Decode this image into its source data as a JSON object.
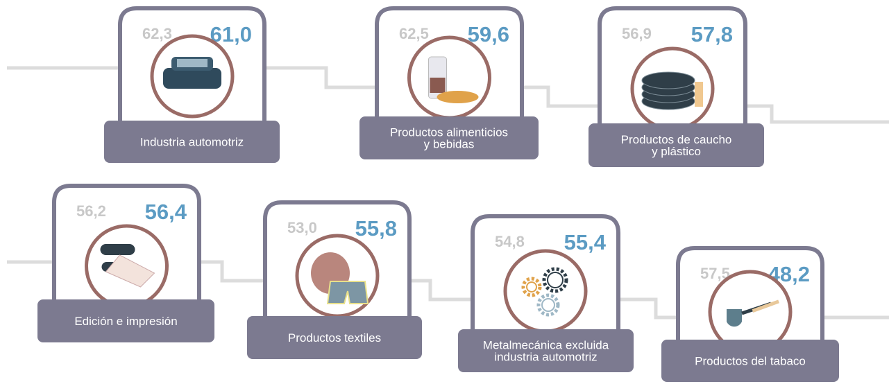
{
  "cards": [
    {
      "label": [
        "Industria automotriz"
      ],
      "previous": "62,3",
      "current": "61,0"
    },
    {
      "label": [
        "Productos alimenticios",
        "y bebidas"
      ],
      "previous": "62,5",
      "current": "59,6"
    },
    {
      "label": [
        "Productos de caucho",
        "y plástico"
      ],
      "previous": "56,9",
      "current": "57,8"
    },
    {
      "label": [
        "Edición e impresión"
      ],
      "previous": "56,2",
      "current": "56,4"
    },
    {
      "label": [
        "Productos textiles"
      ],
      "previous": "53,0",
      "current": "55,8"
    },
    {
      "label": [
        "Metalmecánica excluida",
        "industria automotriz"
      ],
      "previous": "54,8",
      "current": "55,4"
    },
    {
      "label": [
        "Productos del tabaco"
      ],
      "previous": "57,5",
      "current": "48,2"
    }
  ]
}
